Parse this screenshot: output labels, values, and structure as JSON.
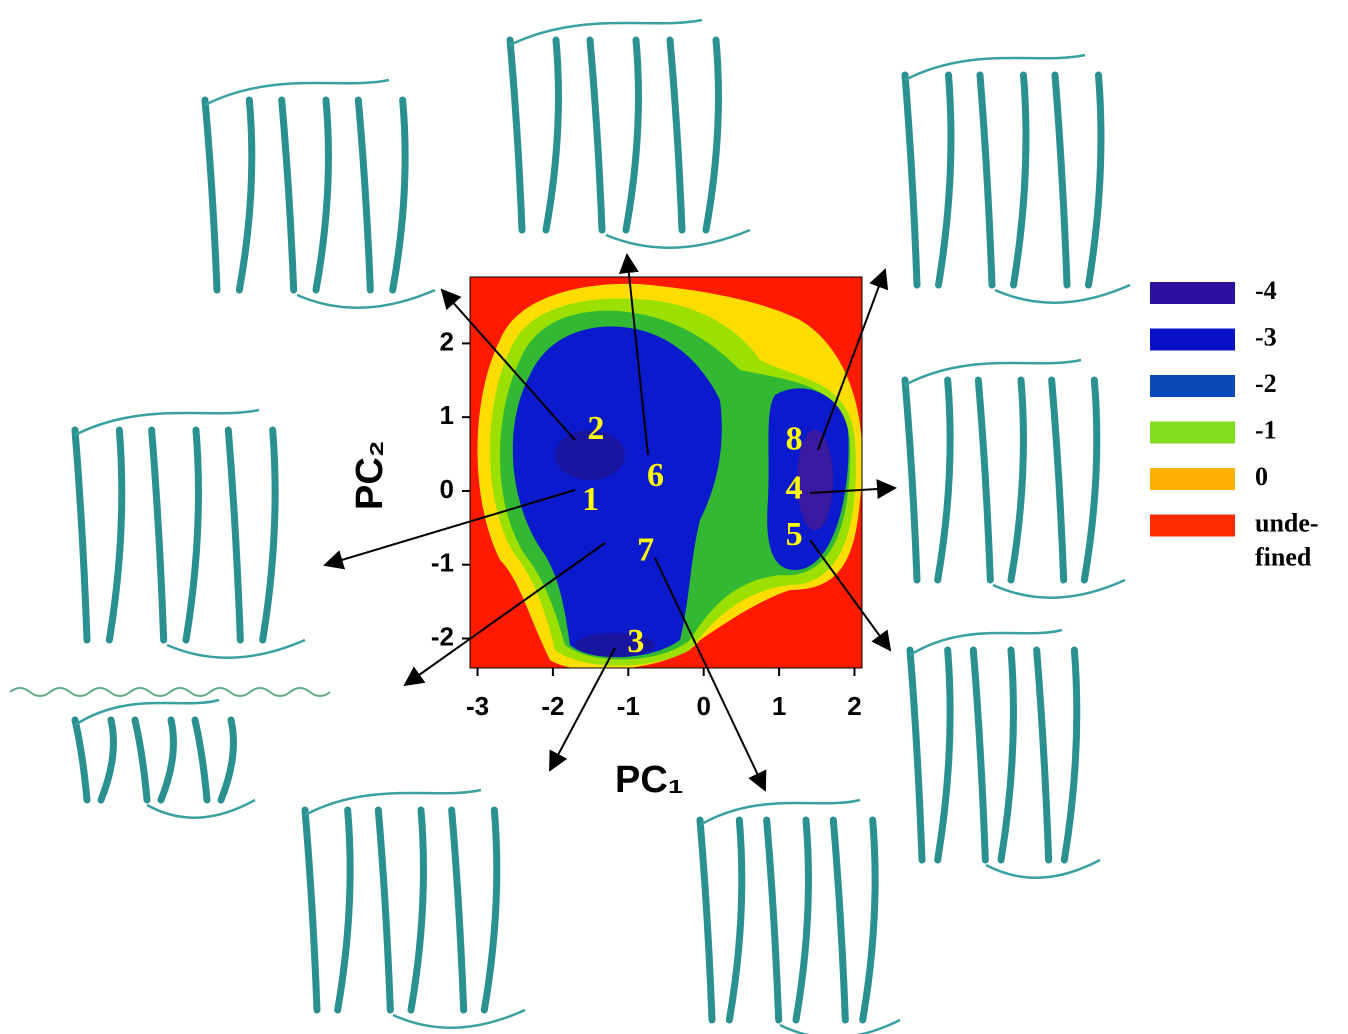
{
  "chart_data": {
    "type": "contour",
    "x_label": "PC₁",
    "y_label": "PC₂",
    "xlim": [
      -3.1,
      2.1
    ],
    "ylim": [
      -2.4,
      2.9
    ],
    "xticks": [
      -3,
      -2,
      -1,
      0,
      1,
      2
    ],
    "yticks": [
      -2,
      -1,
      0,
      1,
      2
    ],
    "annotations": [
      {
        "text": "2",
        "x": -1.43,
        "y": 0.81
      },
      {
        "text": "1",
        "x": -1.5,
        "y": -0.15
      },
      {
        "text": "6",
        "x": -0.64,
        "y": 0.17
      },
      {
        "text": "7",
        "x": -0.77,
        "y": -0.84
      },
      {
        "text": "3",
        "x": -0.9,
        "y": -2.08
      },
      {
        "text": "8",
        "x": 1.2,
        "y": 0.67
      },
      {
        "text": "4",
        "x": 1.2,
        "y": 0
      },
      {
        "text": "5",
        "x": 1.2,
        "y": -0.63
      }
    ],
    "levels": [
      -4,
      -3,
      -2,
      -1,
      0
    ],
    "level_colors": [
      "#2a0fa0",
      "#0a10c8",
      "#0a4ab8",
      "#80dd20",
      "#ffb000"
    ],
    "undefined_label": [
      "unde-",
      "fined"
    ],
    "undefined_color": "#ff2a00"
  }
}
